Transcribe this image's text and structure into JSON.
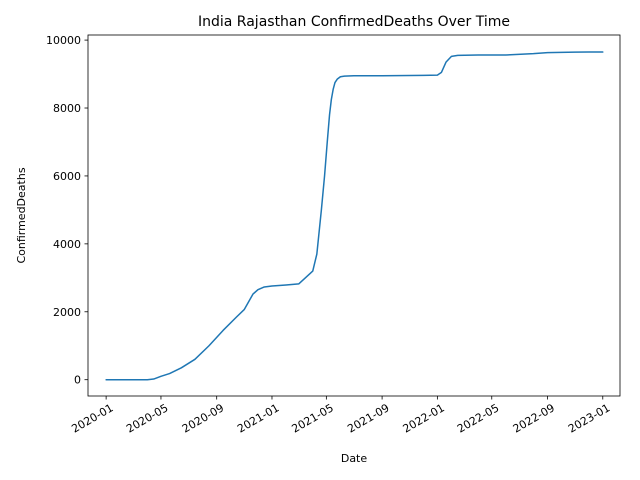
{
  "chart_data": {
    "type": "line",
    "title": "India Rajasthan ConfirmedDeaths Over Time",
    "xlabel": "Date",
    "ylabel": "ConfirmedDeaths",
    "x_ticks": [
      "2020-01",
      "2020-05",
      "2020-09",
      "2021-01",
      "2021-05",
      "2021-09",
      "2022-01",
      "2022-05",
      "2022-09",
      "2023-01"
    ],
    "y_ticks": [
      0,
      2000,
      4000,
      6000,
      8000,
      10000
    ],
    "ylim": [
      -480,
      10150
    ],
    "xlim": [
      "2019-11-22",
      "2023-02-08"
    ],
    "grid": false,
    "legend": "none",
    "colors": {
      "series": "#1f77b4"
    },
    "series": [
      {
        "x": [
          "2020-01-01",
          "2020-02-01",
          "2020-03-01",
          "2020-04-01",
          "2020-04-15",
          "2020-05-01",
          "2020-05-20",
          "2020-06-15",
          "2020-07-15",
          "2020-08-15",
          "2020-09-15",
          "2020-10-15",
          "2020-11-01",
          "2020-11-20",
          "2020-12-01",
          "2020-12-15",
          "2021-01-01",
          "2021-02-01",
          "2021-03-01",
          "2021-04-01",
          "2021-04-10",
          "2021-04-20",
          "2021-04-27",
          "2021-05-03",
          "2021-05-08",
          "2021-05-12",
          "2021-05-16",
          "2021-05-20",
          "2021-05-25",
          "2021-06-01",
          "2021-06-10",
          "2021-07-01",
          "2021-09-01",
          "2021-12-01",
          "2022-01-01",
          "2022-01-10",
          "2022-01-20",
          "2022-02-01",
          "2022-02-15",
          "2022-04-01",
          "2022-06-01",
          "2022-08-01",
          "2022-09-01",
          "2022-10-01",
          "2022-11-01",
          "2022-12-01",
          "2023-01-01"
        ],
        "values": [
          0,
          0,
          0,
          0,
          20,
          100,
          180,
          350,
          600,
          1000,
          1450,
          1850,
          2070,
          2520,
          2650,
          2730,
          2760,
          2790,
          2820,
          3200,
          3700,
          5000,
          6000,
          7000,
          7800,
          8250,
          8550,
          8750,
          8850,
          8920,
          8940,
          8950,
          8950,
          8960,
          8970,
          9050,
          9350,
          9520,
          9550,
          9560,
          9560,
          9600,
          9630,
          9640,
          9645,
          9650,
          9650
        ]
      }
    ]
  }
}
